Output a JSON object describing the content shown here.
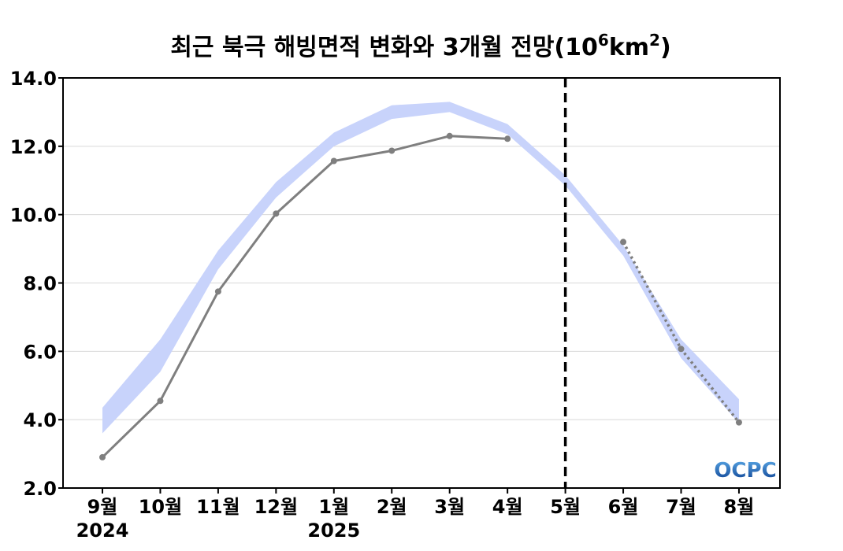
{
  "chart_data": {
    "type": "line",
    "title_main": "최근 북극 해빙면적 변화와 3개월 전망(10",
    "title_exp": "6",
    "title_mid": "km",
    "title_exp2": "2",
    "title_end": ")",
    "categories": [
      "9월",
      "10월",
      "11월",
      "12월",
      "1월",
      "2월",
      "3월",
      "4월",
      "5월",
      "6월",
      "7월",
      "8월"
    ],
    "year_labels": [
      {
        "index": 0,
        "label": "2024"
      },
      {
        "index": 4,
        "label": "2025"
      }
    ],
    "ylim": [
      2.0,
      14.0
    ],
    "yticks": [
      "2.0",
      "4.0",
      "6.0",
      "8.0",
      "10.0",
      "12.0",
      "14.0"
    ],
    "grid": true,
    "band": {
      "lower": [
        3.6,
        5.4,
        8.4,
        10.5,
        12.0,
        12.8,
        13.0,
        12.35,
        10.85,
        8.8,
        5.8,
        3.9
      ],
      "upper": [
        4.35,
        6.35,
        8.95,
        10.95,
        12.4,
        13.2,
        13.3,
        12.65,
        11.15,
        9.1,
        6.35,
        4.6
      ]
    },
    "series": [
      {
        "values": [
          2.9,
          4.55,
          7.75,
          10.03,
          11.57,
          11.87,
          12.3,
          12.22,
          null,
          null,
          null,
          null
        ]
      },
      {
        "values": [
          null,
          null,
          null,
          null,
          null,
          null,
          null,
          null,
          null,
          9.2,
          6.07,
          3.92
        ]
      }
    ],
    "divider_index": 8,
    "colors": {
      "band": "#c8d3fb",
      "observed": "#7f7f7f",
      "forecast": "#7f7f7f",
      "divider": "#000000",
      "grid": "#d9d9d9"
    },
    "logo": {
      "text": "OCPC",
      "color_top": "#5aa8e6",
      "color_bottom": "#0a3d8f"
    }
  }
}
